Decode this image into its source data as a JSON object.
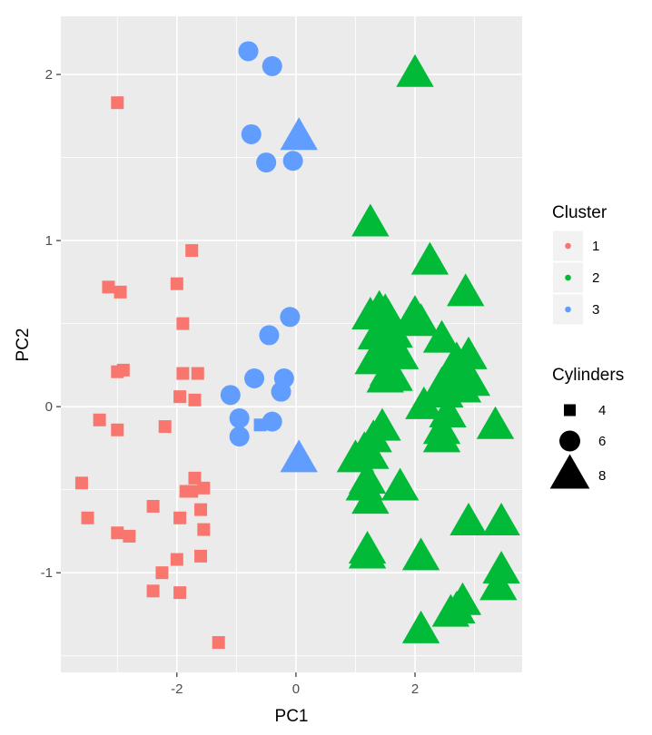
{
  "chart_data": {
    "type": "scatter",
    "xlabel": "PC1",
    "ylabel": "PC2",
    "xlim": [
      -3.95,
      3.8
    ],
    "ylim": [
      -1.6,
      2.35
    ],
    "x_ticks": [
      -2,
      0,
      2
    ],
    "x_tick_labels": [
      "-2",
      "0",
      "2"
    ],
    "y_ticks": [
      -1,
      0,
      1,
      2
    ],
    "y_tick_labels": [
      "-1",
      "0",
      "1",
      "2"
    ],
    "grid": true,
    "legend_position": "right",
    "legends": {
      "color": {
        "title": "Cluster",
        "entries": [
          {
            "label": "1",
            "color": "#F8766D"
          },
          {
            "label": "2",
            "color": "#00BA38"
          },
          {
            "label": "3",
            "color": "#619CFF"
          }
        ]
      },
      "shape": {
        "title": "Cylinders",
        "entries": [
          {
            "label": "4",
            "shape": "square"
          },
          {
            "label": "6",
            "shape": "circle"
          },
          {
            "label": "8",
            "shape": "triangle"
          }
        ]
      }
    },
    "series": [
      {
        "cluster": "1",
        "cylinders": "4",
        "shape": "square",
        "color": "#F8766D",
        "points": [
          [
            -3.0,
            1.83
          ],
          [
            -1.75,
            0.94
          ],
          [
            -3.15,
            0.72
          ],
          [
            -2.95,
            0.69
          ],
          [
            -2.0,
            0.74
          ],
          [
            -1.9,
            0.5
          ],
          [
            -3.0,
            0.21
          ],
          [
            -2.9,
            0.22
          ],
          [
            -1.9,
            0.2
          ],
          [
            -1.65,
            0.2
          ],
          [
            -1.95,
            0.06
          ],
          [
            -1.7,
            0.04
          ],
          [
            -2.2,
            -0.12
          ],
          [
            -3.3,
            -0.08
          ],
          [
            -3.0,
            -0.14
          ],
          [
            -3.6,
            -0.46
          ],
          [
            -1.7,
            -0.43
          ],
          [
            -1.55,
            -0.49
          ],
          [
            -1.75,
            -0.51
          ],
          [
            -1.85,
            -0.51
          ],
          [
            -2.4,
            -0.6
          ],
          [
            -1.6,
            -0.62
          ],
          [
            -1.95,
            -0.67
          ],
          [
            -3.5,
            -0.67
          ],
          [
            -1.55,
            -0.74
          ],
          [
            -3.0,
            -0.76
          ],
          [
            -2.8,
            -0.78
          ],
          [
            -1.6,
            -0.9
          ],
          [
            -2.0,
            -0.92
          ],
          [
            -2.25,
            -1.0
          ],
          [
            -2.4,
            -1.11
          ],
          [
            -1.95,
            -1.12
          ],
          [
            -1.3,
            -1.42
          ]
        ]
      },
      {
        "cluster": "2",
        "cylinders": "8",
        "shape": "triangle",
        "color": "#00BA38",
        "points": [
          [
            2.0,
            2.0
          ],
          [
            1.25,
            1.1
          ],
          [
            2.25,
            0.87
          ],
          [
            2.85,
            0.68
          ],
          [
            1.4,
            0.58
          ],
          [
            1.5,
            0.56
          ],
          [
            1.25,
            0.54
          ],
          [
            1.55,
            0.53
          ],
          [
            2.0,
            0.55
          ],
          [
            1.95,
            0.52
          ],
          [
            2.1,
            0.5
          ],
          [
            1.35,
            0.42
          ],
          [
            1.65,
            0.43
          ],
          [
            2.45,
            0.4
          ],
          [
            1.5,
            0.38
          ],
          [
            1.4,
            0.3
          ],
          [
            1.75,
            0.3
          ],
          [
            1.3,
            0.27
          ],
          [
            2.9,
            0.3
          ],
          [
            2.7,
            0.27
          ],
          [
            1.55,
            0.2
          ],
          [
            2.6,
            0.2
          ],
          [
            1.65,
            0.17
          ],
          [
            1.5,
            0.16
          ],
          [
            2.65,
            0.1
          ],
          [
            2.5,
            0.07
          ],
          [
            2.95,
            0.14
          ],
          [
            2.8,
            0.1
          ],
          [
            2.45,
            0.12
          ],
          [
            2.15,
            0.0
          ],
          [
            2.55,
            -0.05
          ],
          [
            2.45,
            -0.15
          ],
          [
            1.45,
            -0.13
          ],
          [
            3.35,
            -0.12
          ],
          [
            1.3,
            -0.2
          ],
          [
            2.45,
            -0.2
          ],
          [
            1.0,
            -0.32
          ],
          [
            1.25,
            -0.3
          ],
          [
            1.15,
            -0.27
          ],
          [
            1.2,
            -0.45
          ],
          [
            1.15,
            -0.49
          ],
          [
            1.75,
            -0.49
          ],
          [
            1.25,
            -0.57
          ],
          [
            2.9,
            -0.7
          ],
          [
            3.45,
            -0.7
          ],
          [
            1.2,
            -0.87
          ],
          [
            1.2,
            -0.9
          ],
          [
            2.1,
            -0.91
          ],
          [
            3.45,
            -0.99
          ],
          [
            3.4,
            -1.09
          ],
          [
            2.8,
            -1.18
          ],
          [
            2.7,
            -1.23
          ],
          [
            2.6,
            -1.25
          ],
          [
            2.1,
            -1.35
          ]
        ]
      },
      {
        "cluster": "3",
        "cylinders": "6",
        "shape": "circle",
        "color": "#619CFF",
        "points": [
          [
            -0.8,
            2.14
          ],
          [
            -0.4,
            2.05
          ],
          [
            -0.75,
            1.64
          ],
          [
            -0.5,
            1.47
          ],
          [
            -0.05,
            1.48
          ],
          [
            -0.1,
            0.54
          ],
          [
            -0.45,
            0.43
          ],
          [
            -0.7,
            0.17
          ],
          [
            -0.2,
            0.17
          ],
          [
            -1.1,
            0.07
          ],
          [
            -0.25,
            0.09
          ],
          [
            -0.95,
            -0.07
          ],
          [
            -0.4,
            -0.09
          ],
          [
            -0.95,
            -0.18
          ]
        ]
      },
      {
        "cluster": "3",
        "cylinders": "8",
        "shape": "triangle",
        "color": "#619CFF",
        "points": [
          [
            0.05,
            1.62
          ],
          [
            0.05,
            -0.32
          ]
        ]
      },
      {
        "cluster": "3",
        "cylinders": "4",
        "shape": "square",
        "color": "#619CFF",
        "points": [
          [
            -0.6,
            -0.11
          ]
        ]
      }
    ]
  }
}
